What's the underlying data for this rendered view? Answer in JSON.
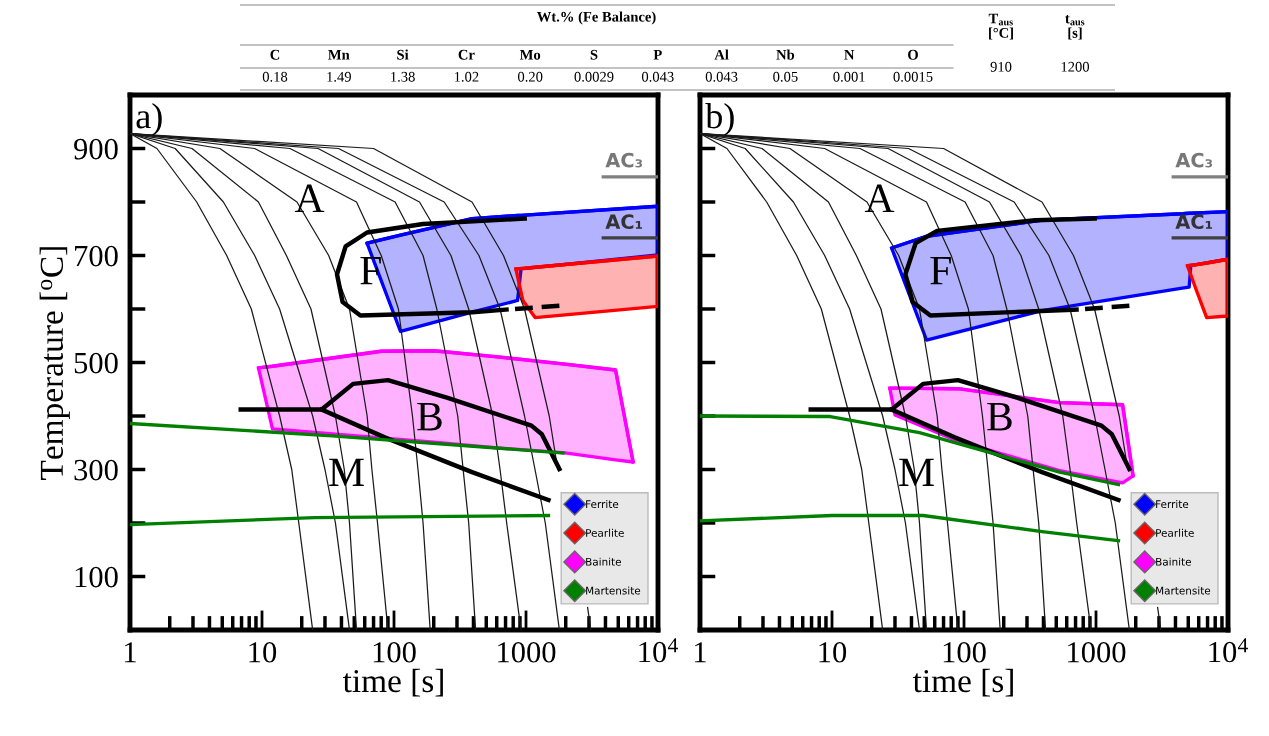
{
  "chart_data": [
    {
      "type": "other",
      "title": "Wt.% (Fe Balance)",
      "categories": [
        "C",
        "Mn",
        "Si",
        "Cr",
        "Mo",
        "S",
        "P",
        "Al",
        "Nb",
        "N",
        "O"
      ],
      "value_labels": [
        "0.18",
        "1.49",
        "1.38",
        "1.02",
        "0.20",
        "0.0029",
        "0.043",
        "0.043",
        "0.05",
        "0.001",
        "0.0015"
      ],
      "annotations": [
        "T$_{aus}$\n[°C]",
        "910",
        "t$_{aus}$\n[s]",
        "1200"
      ]
    },
    {
      "type": "line",
      "xlabel": "time [s]",
      "ylabel": "Temperature [$^{o}$C]",
      "log": "x",
      "xlim": [
        1,
        10000
      ],
      "ylim": [
        0,
        1000
      ],
      "xticks": [
        1,
        10,
        100,
        1000,
        {
          "value": 10000,
          "label": "10$^{4}$"
        }
      ],
      "yticks": [
        {
          "value": 100,
          "label": "100"
        },
        {
          "value": 200,
          "label": null
        },
        {
          "value": 300,
          "label": "300"
        },
        {
          "value": 400,
          "label": null
        },
        {
          "value": 500,
          "label": "500"
        },
        {
          "value": 600,
          "label": null
        },
        {
          "value": 700,
          "label": "700"
        },
        {
          "value": 800,
          "label": null
        },
        {
          "value": 900,
          "label": "900"
        }
      ],
      "legend": "bottom right",
      "series": [
        {
          "type": "line",
          "color": "#1a1a1a",
          "x": [
            1,
            1.6,
            3.2,
            5.4,
            8.3,
            13.6,
            16.8,
            19,
            24.2
          ],
          "values": [
            928,
            900,
            800,
            700,
            600,
            400,
            300,
            200,
            0
          ]
        },
        {
          "type": "line",
          "color": "#1a1a1a",
          "x": [
            1,
            2.2,
            5.1,
            8.8,
            13.6,
            24.2,
            30,
            36,
            46
          ],
          "values": [
            928,
            900,
            800,
            700,
            600,
            400,
            300,
            200,
            0
          ]
        },
        {
          "type": "line",
          "color": "#1a1a1a",
          "x": [
            1,
            2.95,
            9.4,
            15.3,
            23.5,
            36,
            42,
            46,
            52
          ],
          "values": [
            928,
            900,
            800,
            700,
            600,
            400,
            300,
            200,
            0
          ]
        },
        {
          "type": "line",
          "color": "#1a1a1a",
          "x": [
            1,
            4.8,
            18.4,
            32,
            46,
            62.6,
            68,
            75,
            90
          ],
          "values": [
            928,
            900,
            800,
            700,
            600,
            400,
            300,
            200,
            0
          ]
        },
        {
          "type": "line",
          "color": "#1a1a1a",
          "x": [
            1,
            8.8,
            52,
            80,
            108,
            138,
            152,
            166,
            188
          ],
          "values": [
            928,
            900,
            800,
            700,
            600,
            400,
            300,
            200,
            0
          ]
        },
        {
          "type": "line",
          "color": "#1a1a1a",
          "x": [
            1,
            16.3,
            102,
            166,
            211,
            304,
            334,
            368,
            415
          ],
          "values": [
            928,
            900,
            800,
            700,
            600,
            400,
            300,
            200,
            0
          ]
        },
        {
          "type": "line",
          "color": "#1a1a1a",
          "x": [
            1,
            26.6,
            156,
            270,
            368,
            560,
            636,
            714,
            917
          ],
          "values": [
            928,
            900,
            800,
            700,
            600,
            400,
            300,
            200,
            0
          ]
        },
        {
          "type": "line",
          "color": "#1a1a1a",
          "x": [
            1,
            38,
            240,
            440,
            636,
            975,
            1170,
            1400,
            1790
          ],
          "values": [
            928,
            900,
            800,
            700,
            600,
            400,
            300,
            200,
            0
          ]
        },
        {
          "type": "line",
          "color": "#1a1a1a",
          "x": [
            1,
            70,
            390,
            675,
            975,
            1500,
            1740,
            2020,
            2930,
            3100
          ],
          "values": [
            928,
            900,
            800,
            700,
            600,
            400,
            300,
            null,
            42,
            0
          ]
        },
        {
          "type": "line",
          "color": "#000000",
          "x": [
            977,
            166,
            62.5,
            43,
            37,
            40.8,
            55.6,
            390,
            712
          ],
          "values": [
            769,
            759,
            743,
            717,
            665,
            613,
            588,
            594,
            599
          ]
        },
        {
          "type": "line",
          "color": "#000000",
          "line_style": "dashed",
          "x": [
            712,
            1790
          ],
          "values": [
            599,
            606
          ]
        },
        {
          "type": "line",
          "color": "#000000",
          "x": [
            6.9,
            28.3,
            49,
            90,
            255,
            1100,
            1318,
            1790
          ],
          "values": [
            412,
            412,
            460,
            467,
            434,
            382,
            366,
            301
          ]
        },
        {
          "type": "line",
          "color": "#000000",
          "x": [
            28.3,
            85,
            390,
            1480
          ],
          "values": [
            412,
            360,
            295,
            243
          ]
        },
        {
          "type": "line",
          "name": "Ferrite",
          "color": "#0000ff",
          "x": [
            62.5,
            112,
            390,
            863,
            918,
            10000
          ],
          "values": [
            723,
            738,
            769,
            775,
            775,
            792
          ],
          "upper": [
            723,
            738,
            769,
            775,
            775,
            792
          ],
          "lower": [
            723,
            558,
            594,
            616,
            675,
            701
          ]
        },
        {
          "type": "line",
          "name": "Pearlite",
          "color": "#ff0000",
          "x": [
            838,
            946,
            1172,
            10000
          ],
          "values": [
            675,
            676,
            678,
            699
          ],
          "upper": [
            675,
            676,
            678,
            699
          ],
          "lower": [
            675,
            616,
            584,
            605
          ]
        },
        {
          "type": "line",
          "name": "Bainite",
          "color": "#ff00ff",
          "x": [
            9.4,
            12,
            80,
            200,
            637,
            1970,
            4770,
            6480
          ],
          "values": [
            490,
            493,
            521,
            522,
            510,
            497,
            486,
            314
          ],
          "upper": [
            490,
            493,
            521,
            522,
            510,
            497,
            486,
            314
          ],
          "lower": [
            490,
            376,
            359,
            351,
            340,
            331,
            318,
            314
          ]
        },
        {
          "type": "line",
          "name": "Martensite",
          "color": "#008000",
          "x": [
            1,
            34,
            1910
          ],
          "values": [
            386,
            363,
            331
          ]
        },
        {
          "type": "line",
          "color": "#008000",
          "x": [
            1,
            25,
            1480
          ],
          "values": [
            197,
            210,
            214
          ]
        },
        {
          "type": "line",
          "color": "#808080",
          "x": [
            3850,
            10000
          ],
          "values": [
            847,
            847
          ]
        },
        {
          "type": "line",
          "color": "#404040",
          "x": [
            3850,
            10000
          ],
          "values": [
            733,
            733
          ]
        }
      ],
      "annotations": [
        "a)",
        "A",
        "F",
        "B",
        "M",
        "AC₃",
        "AC₁"
      ]
    },
    {
      "type": "line",
      "xlabel": "time [s]",
      "log": "x",
      "xlim": [
        1,
        10000
      ],
      "ylim": [
        0,
        1000
      ],
      "tick_labels": "x",
      "xticks": [
        1,
        10,
        100,
        1000,
        {
          "value": 10000,
          "label": "10$^{4}$"
        }
      ],
      "yticks": [
        {
          "value": 100,
          "label": null
        },
        {
          "value": 200,
          "label": null
        },
        {
          "value": 300,
          "label": null
        },
        {
          "value": 400,
          "label": null
        },
        {
          "value": 500,
          "label": null
        },
        {
          "value": 600,
          "label": null
        },
        {
          "value": 700,
          "label": null
        },
        {
          "value": 800,
          "label": null
        },
        {
          "value": 900,
          "label": null
        }
      ],
      "legend": "bottom right",
      "series": [
        {
          "type": "line",
          "color": "#1a1a1a",
          "x": [
            1,
            1.6,
            3.2,
            5.4,
            8.3,
            13.6,
            16.8,
            19,
            24.2
          ],
          "values": [
            928,
            900,
            800,
            700,
            600,
            400,
            300,
            200,
            0
          ]
        },
        {
          "type": "line",
          "color": "#1a1a1a",
          "x": [
            1,
            2.2,
            5.1,
            8.8,
            13.6,
            24.2,
            30,
            36,
            46
          ],
          "values": [
            928,
            900,
            800,
            700,
            600,
            400,
            300,
            200,
            0
          ]
        },
        {
          "type": "line",
          "color": "#1a1a1a",
          "x": [
            1,
            2.95,
            9.4,
            15.3,
            23.5,
            36,
            42,
            46,
            52
          ],
          "values": [
            928,
            900,
            800,
            700,
            600,
            400,
            300,
            200,
            0
          ]
        },
        {
          "type": "line",
          "color": "#1a1a1a",
          "x": [
            1,
            4.8,
            18.4,
            32,
            46,
            62.6,
            68,
            75,
            90
          ],
          "values": [
            928,
            900,
            800,
            700,
            600,
            400,
            300,
            200,
            0
          ]
        },
        {
          "type": "line",
          "color": "#1a1a1a",
          "x": [
            1,
            8.8,
            52,
            80,
            108,
            138,
            152,
            166,
            188
          ],
          "values": [
            928,
            900,
            800,
            700,
            600,
            400,
            300,
            200,
            0
          ]
        },
        {
          "type": "line",
          "color": "#1a1a1a",
          "x": [
            1,
            16.3,
            102,
            166,
            211,
            304,
            334,
            368,
            415
          ],
          "values": [
            928,
            900,
            800,
            700,
            600,
            400,
            300,
            200,
            0
          ]
        },
        {
          "type": "line",
          "color": "#1a1a1a",
          "x": [
            1,
            26.6,
            156,
            270,
            368,
            560,
            636,
            714,
            917
          ],
          "values": [
            928,
            900,
            800,
            700,
            600,
            400,
            300,
            200,
            0
          ]
        },
        {
          "type": "line",
          "color": "#1a1a1a",
          "x": [
            1,
            38,
            240,
            440,
            636,
            975,
            1170,
            1400,
            1790
          ],
          "values": [
            928,
            900,
            800,
            700,
            600,
            400,
            300,
            200,
            0
          ]
        },
        {
          "type": "line",
          "color": "#1a1a1a",
          "x": [
            1,
            70,
            390,
            675,
            975,
            1500,
            1740,
            2020,
            2930,
            3100
          ],
          "values": [
            928,
            900,
            800,
            700,
            600,
            400,
            300,
            null,
            42,
            0
          ]
        },
        {
          "type": "line",
          "color": "#000000",
          "x": [
            977,
            345,
            62.5,
            43,
            36,
            40.8,
            55.6,
            712
          ],
          "values": [
            769,
            766,
            746,
            723,
            665,
            613,
            588,
            599
          ]
        },
        {
          "type": "line",
          "color": "#000000",
          "line_style": "dashed",
          "x": [
            712,
            1790
          ],
          "values": [
            599,
            606
          ]
        },
        {
          "type": "line",
          "color": "#000000",
          "x": [
            6.9,
            28.3,
            49,
            90,
            255,
            1100,
            1318,
            1790
          ],
          "values": [
            412,
            412,
            460,
            467,
            434,
            382,
            366,
            301
          ]
        },
        {
          "type": "line",
          "color": "#000000",
          "x": [
            28.3,
            85,
            390,
            1480
          ],
          "values": [
            412,
            360,
            295,
            243
          ]
        },
        {
          "type": "line",
          "name": "Ferrite",
          "color": "#0000ff",
          "x": [
            28.3,
            52,
            390,
            4500,
            5080,
            5230,
            10000
          ],
          "values": [
            714,
            736,
            766,
            778,
            779,
            779,
            782
          ],
          "upper": [
            714,
            736,
            766,
            778,
            779,
            779,
            782
          ],
          "lower": [
            714,
            542,
            597,
            639,
            641,
            681,
            693
          ]
        },
        {
          "type": "line",
          "name": "Pearlite",
          "color": "#ff0000",
          "x": [
            4930,
            5740,
            6890,
            10000
          ],
          "values": [
            681,
            683,
            686,
            693
          ],
          "upper": [
            681,
            683,
            686,
            693
          ],
          "lower": [
            681,
            636,
            584,
            587
          ]
        },
        {
          "type": "line",
          "name": "Bainite",
          "color": "#ff00ff",
          "x": [
            27.4,
            30,
            90,
            530,
            1590,
            1910
          ],
          "values": [
            452,
            452,
            451,
            425,
            421,
            288
          ],
          "upper": [
            452,
            452,
            451,
            425,
            421,
            288
          ],
          "lower": [
            452,
            402,
            353,
            298,
            275,
            288
          ]
        },
        {
          "type": "line",
          "name": "Martensite",
          "color": "#008000",
          "x": [
            1,
            9.7,
            46,
            530,
            1480
          ],
          "values": [
            400,
            399,
            369,
            295,
            272
          ]
        },
        {
          "type": "line",
          "color": "#008000",
          "x": [
            1,
            10,
            49,
            390,
            1480
          ],
          "values": [
            204,
            214,
            214,
            184,
            167
          ]
        },
        {
          "type": "line",
          "color": "#808080",
          "x": [
            3850,
            10000
          ],
          "values": [
            847,
            847
          ]
        },
        {
          "type": "line",
          "color": "#404040",
          "x": [
            3850,
            10000
          ],
          "values": [
            733,
            733
          ]
        }
      ],
      "annotations": [
        "b)",
        "A",
        "F",
        "B",
        "M",
        "AC₃",
        "AC₁"
      ]
    }
  ]
}
